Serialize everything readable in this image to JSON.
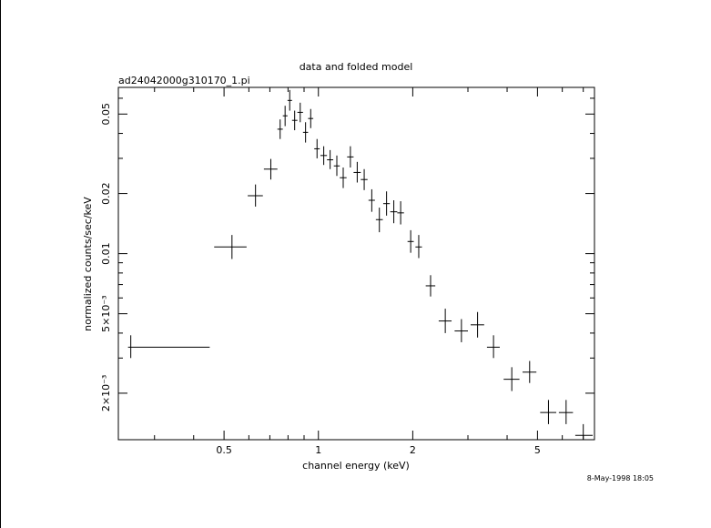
{
  "chart_data": {
    "type": "scatter",
    "title": "data and folded model",
    "subtitle": "ad24042000g310170_1.pi",
    "xlabel": "channel energy (keV)",
    "ylabel": "normalized counts/sec/keV",
    "timestamp": "8-May-1998 18:05",
    "xscale": "log",
    "yscale": "log",
    "xlim": [
      0.23,
      7.6
    ],
    "ylim": [
      0.00117,
      0.068
    ],
    "x_ticks": [
      {
        "value": 0.5,
        "label": "0.5"
      },
      {
        "value": 1,
        "label": "1"
      },
      {
        "value": 2,
        "label": "2"
      },
      {
        "value": 5,
        "label": "5"
      }
    ],
    "y_ticks": [
      {
        "value": 0.002,
        "label": "2×10⁻³"
      },
      {
        "value": 0.005,
        "label": "5×10⁻³"
      },
      {
        "value": 0.01,
        "label": "0.01"
      },
      {
        "value": 0.02,
        "label": "0.02"
      },
      {
        "value": 0.05,
        "label": "0.05"
      }
    ],
    "grid": false,
    "points": [
      {
        "x": 0.252,
        "xlo": 0.247,
        "xhi": 0.45,
        "y": 0.0034,
        "ylo": 0.003,
        "yhi": 0.0039
      },
      {
        "x": 0.53,
        "xlo": 0.465,
        "xhi": 0.59,
        "y": 0.0108,
        "ylo": 0.0094,
        "yhi": 0.0124
      },
      {
        "x": 0.63,
        "xlo": 0.595,
        "xhi": 0.665,
        "y": 0.0195,
        "ylo": 0.0172,
        "yhi": 0.0222
      },
      {
        "x": 0.705,
        "xlo": 0.67,
        "xhi": 0.74,
        "y": 0.0265,
        "ylo": 0.0235,
        "yhi": 0.0298
      },
      {
        "x": 0.755,
        "xlo": 0.74,
        "xhi": 0.77,
        "y": 0.042,
        "ylo": 0.0375,
        "yhi": 0.047
      },
      {
        "x": 0.783,
        "xlo": 0.77,
        "xhi": 0.797,
        "y": 0.049,
        "ylo": 0.0435,
        "yhi": 0.055
      },
      {
        "x": 0.81,
        "xlo": 0.797,
        "xhi": 0.824,
        "y": 0.0585,
        "ylo": 0.052,
        "yhi": 0.066
      },
      {
        "x": 0.84,
        "xlo": 0.824,
        "xhi": 0.857,
        "y": 0.0465,
        "ylo": 0.0415,
        "yhi": 0.052
      },
      {
        "x": 0.875,
        "xlo": 0.857,
        "xhi": 0.893,
        "y": 0.051,
        "ylo": 0.0455,
        "yhi": 0.057
      },
      {
        "x": 0.91,
        "xlo": 0.893,
        "xhi": 0.927,
        "y": 0.0405,
        "ylo": 0.036,
        "yhi": 0.0455
      },
      {
        "x": 0.945,
        "xlo": 0.927,
        "xhi": 0.963,
        "y": 0.0475,
        "ylo": 0.0425,
        "yhi": 0.053
      },
      {
        "x": 0.99,
        "xlo": 0.97,
        "xhi": 1.01,
        "y": 0.0335,
        "ylo": 0.03,
        "yhi": 0.0375
      },
      {
        "x": 1.04,
        "xlo": 1.015,
        "xhi": 1.065,
        "y": 0.031,
        "ylo": 0.0278,
        "yhi": 0.0345
      },
      {
        "x": 1.09,
        "xlo": 1.065,
        "xhi": 1.115,
        "y": 0.0295,
        "ylo": 0.0265,
        "yhi": 0.033
      },
      {
        "x": 1.145,
        "xlo": 1.12,
        "xhi": 1.17,
        "y": 0.0275,
        "ylo": 0.0245,
        "yhi": 0.031
      },
      {
        "x": 1.2,
        "xlo": 1.17,
        "xhi": 1.23,
        "y": 0.024,
        "ylo": 0.0213,
        "yhi": 0.027
      },
      {
        "x": 1.265,
        "xlo": 1.235,
        "xhi": 1.295,
        "y": 0.0305,
        "ylo": 0.027,
        "yhi": 0.0345
      },
      {
        "x": 1.33,
        "xlo": 1.295,
        "xhi": 1.365,
        "y": 0.0255,
        "ylo": 0.0227,
        "yhi": 0.0288
      },
      {
        "x": 1.4,
        "xlo": 1.365,
        "xhi": 1.435,
        "y": 0.0235,
        "ylo": 0.0208,
        "yhi": 0.0265
      },
      {
        "x": 1.48,
        "xlo": 1.445,
        "xhi": 1.515,
        "y": 0.0185,
        "ylo": 0.0162,
        "yhi": 0.021
      },
      {
        "x": 1.565,
        "xlo": 1.525,
        "xhi": 1.605,
        "y": 0.0148,
        "ylo": 0.0128,
        "yhi": 0.017
      },
      {
        "x": 1.65,
        "xlo": 1.61,
        "xhi": 1.69,
        "y": 0.0178,
        "ylo": 0.0155,
        "yhi": 0.0205
      },
      {
        "x": 1.74,
        "xlo": 1.695,
        "xhi": 1.785,
        "y": 0.0162,
        "ylo": 0.0142,
        "yhi": 0.0185
      },
      {
        "x": 1.83,
        "xlo": 1.785,
        "xhi": 1.875,
        "y": 0.016,
        "ylo": 0.014,
        "yhi": 0.0183
      },
      {
        "x": 1.97,
        "xlo": 1.925,
        "xhi": 2.015,
        "y": 0.0115,
        "ylo": 0.0101,
        "yhi": 0.0131
      },
      {
        "x": 2.09,
        "xlo": 2.04,
        "xhi": 2.14,
        "y": 0.0108,
        "ylo": 0.0095,
        "yhi": 0.0124
      },
      {
        "x": 2.28,
        "xlo": 2.2,
        "xhi": 2.36,
        "y": 0.0069,
        "ylo": 0.0061,
        "yhi": 0.0078
      },
      {
        "x": 2.54,
        "xlo": 2.42,
        "xhi": 2.66,
        "y": 0.0046,
        "ylo": 0.004,
        "yhi": 0.0053
      },
      {
        "x": 2.86,
        "xlo": 2.72,
        "xhi": 3.0,
        "y": 0.0041,
        "ylo": 0.0036,
        "yhi": 0.0047
      },
      {
        "x": 3.22,
        "xlo": 3.06,
        "xhi": 3.38,
        "y": 0.0044,
        "ylo": 0.0038,
        "yhi": 0.0051
      },
      {
        "x": 3.62,
        "xlo": 3.45,
        "xhi": 3.79,
        "y": 0.0034,
        "ylo": 0.003,
        "yhi": 0.0039
      },
      {
        "x": 4.14,
        "xlo": 3.9,
        "xhi": 4.38,
        "y": 0.00235,
        "ylo": 0.00205,
        "yhi": 0.0027
      },
      {
        "x": 4.72,
        "xlo": 4.48,
        "xhi": 4.96,
        "y": 0.00255,
        "ylo": 0.00225,
        "yhi": 0.0029
      },
      {
        "x": 5.42,
        "xlo": 5.1,
        "xhi": 5.74,
        "y": 0.0016,
        "ylo": 0.0014,
        "yhi": 0.00185
      },
      {
        "x": 6.17,
        "xlo": 5.85,
        "xhi": 6.49,
        "y": 0.0016,
        "ylo": 0.0014,
        "yhi": 0.00185
      },
      {
        "x": 7.0,
        "xlo": 6.6,
        "xhi": 7.5,
        "y": 0.00123,
        "ylo": 0.00108,
        "yhi": 0.0014
      }
    ]
  }
}
